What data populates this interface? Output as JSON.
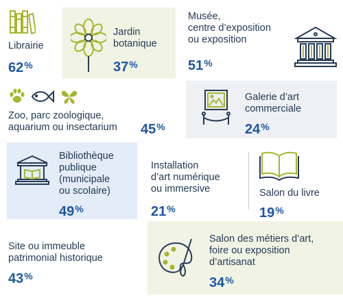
{
  "colors": {
    "navy": "#243a56",
    "blue": "#1f56a3",
    "green": "#a6b62f",
    "bg_green": "#f1f4e4",
    "bg_gray": "#eef0f3",
    "bg_blue": "#e3ecf7"
  },
  "items": {
    "librairie": {
      "label": "Librairie",
      "value": "62",
      "icon": "books-icon"
    },
    "jardin": {
      "label1": "Jardin",
      "label2": "botanique",
      "value": "37",
      "icon": "flower-icon"
    },
    "musee": {
      "label1": "Musée,",
      "label2": "centre d’exposition",
      "label3": "ou exposition",
      "value": "51",
      "icon": "museum-building-icon"
    },
    "zoo": {
      "label1": "Zoo, parc zoologique,",
      "label2": "aquarium ou insectarium",
      "value": "45",
      "icons": [
        "paw-prints-icon",
        "fish-icon",
        "butterfly-icon"
      ]
    },
    "galerie": {
      "label1": "Galerie d’art",
      "label2": "commerciale",
      "value": "24",
      "icon": "framed-picture-icon"
    },
    "bibliotheque": {
      "label1": "Bibliothèque",
      "label2": "publique",
      "label3": "(municipale",
      "label4": "ou scolaire)",
      "value": "49",
      "icon": "library-building-icon"
    },
    "installation": {
      "label1": "Installation",
      "label2": "d’art numérique",
      "label3": "ou immersive",
      "value": "21"
    },
    "salon_livre": {
      "label": "Salon du livre",
      "value": "19",
      "icon": "open-book-icon"
    },
    "site": {
      "label1": "Site ou immeuble",
      "label2": "patrimonial historique",
      "value": "43"
    },
    "salon_metiers": {
      "label1": "Salon des métiers d’art,",
      "label2": "foire ou exposition",
      "label3": "d’artisanat",
      "value": "34",
      "icon": "palette-brush-icon"
    }
  },
  "percent_sign": "%"
}
